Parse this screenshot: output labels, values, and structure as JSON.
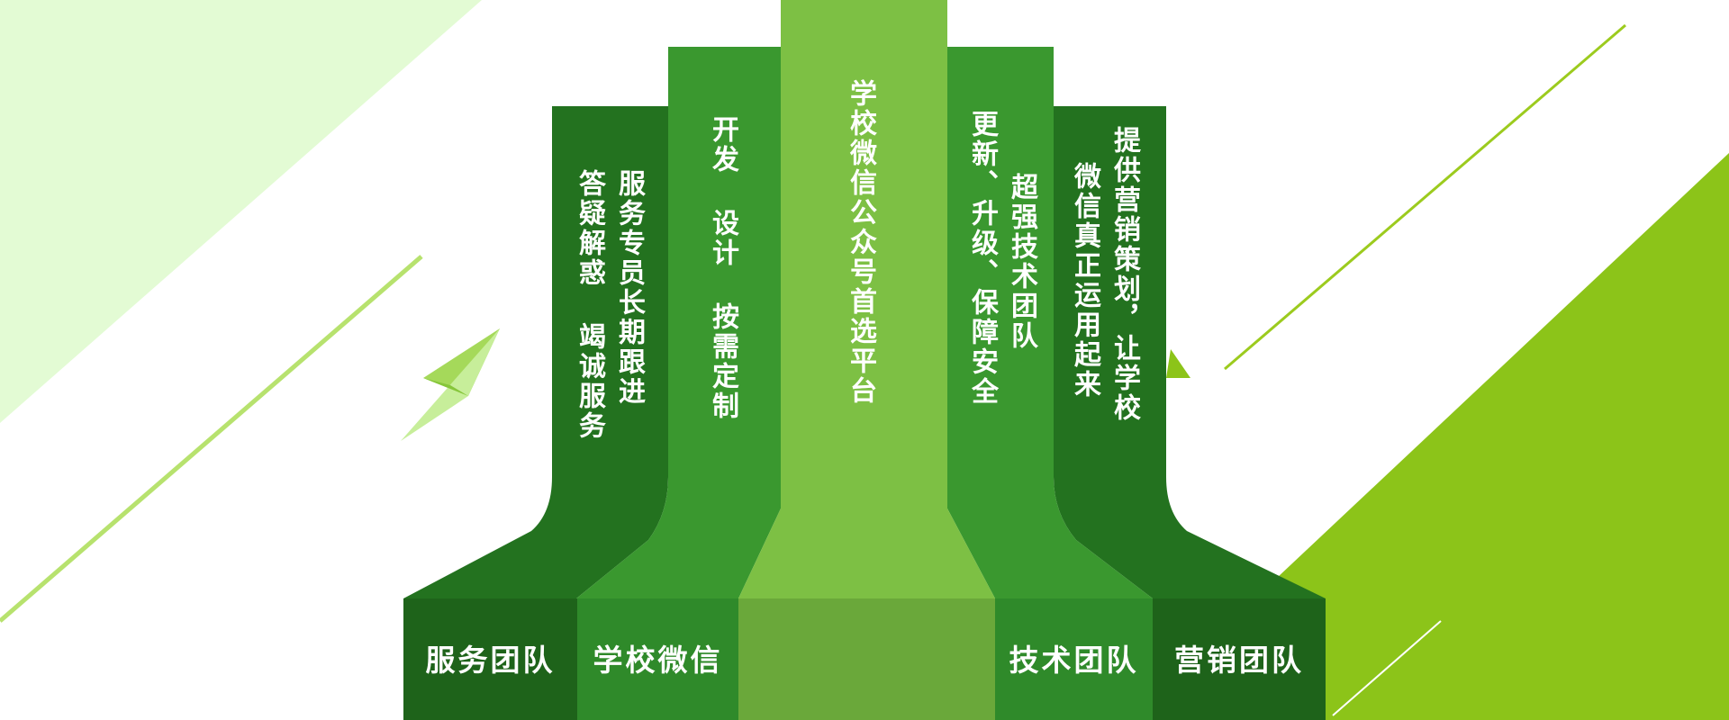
{
  "colors": {
    "dark_green": "#23721f",
    "medium_green": "#3a982f",
    "light_green": "#7dc044",
    "base_dark": "#1e631a",
    "lime": "#8cc419",
    "pale_green": "#e3fbd4"
  },
  "columns": [
    {
      "base_label": "服务团队",
      "lines": [
        "服务专员长期跟进",
        "答疑解惑 竭诚服务"
      ]
    },
    {
      "base_label": "学校微信",
      "lines": [
        "开发 设计 按需定制"
      ]
    },
    {
      "base_label": "",
      "lines": [
        "学校微信公众号首选平台"
      ]
    },
    {
      "base_label": "技术团队",
      "lines": [
        "超强技术团队",
        "更新、升级、保障安全"
      ]
    },
    {
      "base_label": "营销团队",
      "lines": [
        "提供营销策划，让学校",
        "微信真正运用起来"
      ]
    }
  ],
  "decorations": [
    "paper-plane-icon"
  ]
}
